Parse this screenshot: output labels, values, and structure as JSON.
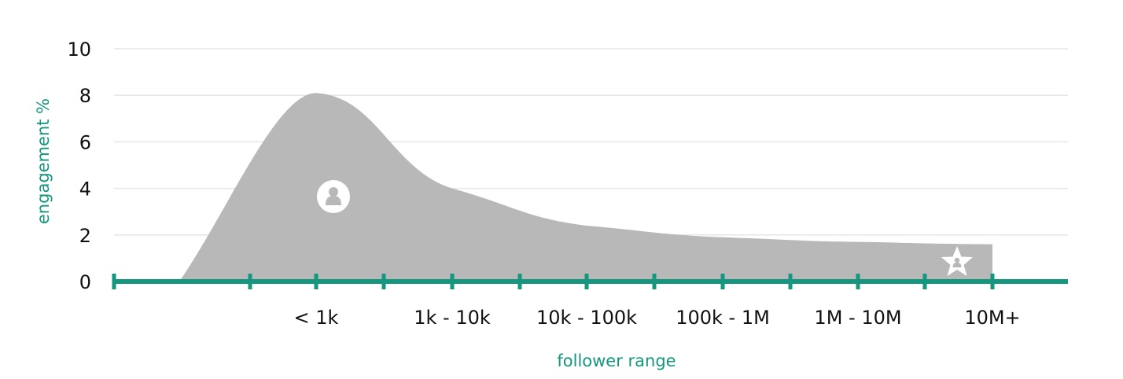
{
  "chart_data": {
    "type": "area",
    "xlabel": "follower range",
    "ylabel": "engagement %",
    "ylim": [
      0,
      10
    ],
    "yticks": [
      0,
      2,
      4,
      6,
      8,
      10
    ],
    "categories": [
      "< 1k",
      "1k - 10k",
      "10k - 100k",
      "100k - 1M",
      "1M - 10M",
      "10M+"
    ],
    "x": [
      "< 1k",
      "1k - 10k",
      "10k - 100k",
      "100k - 1M",
      "1M - 10M",
      "10M+"
    ],
    "values": [
      8.1,
      4.0,
      2.4,
      1.9,
      1.7,
      1.6
    ],
    "grid": true,
    "colors": {
      "area": "#b8b8b8",
      "axis": "#14977e",
      "axis_title": "#14977e",
      "grid": "#e6e6e6",
      "text": "#111111"
    },
    "icons": [
      "person-icon",
      "star-person-icon"
    ]
  }
}
